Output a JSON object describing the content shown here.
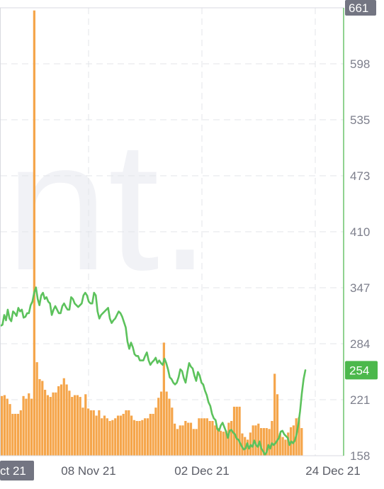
{
  "chart_data": {
    "type": "bar+line",
    "title": "",
    "xlabel": "",
    "ylabel": "",
    "watermark": "nt.",
    "y_axis": {
      "min": 158,
      "max": 661,
      "tick_labels": [
        "661",
        "598",
        "535",
        "473",
        "410",
        "347",
        "284",
        "221",
        "158"
      ],
      "top_badge": "661",
      "grid": true
    },
    "x_axis": {
      "tick_labels": [
        "ct 21",
        "08 Nov 21",
        "02 Dec 21",
        "24 Dec 21"
      ],
      "highlighted_tick": "ct 21",
      "grid": true
    },
    "current_value_badge": "254",
    "colors": {
      "bar": "#f5a54a",
      "line": "#5cc25c",
      "axis_line": "#6cc36c",
      "badge_gray": "#737582",
      "badge_green": "#4cb84c",
      "grid": "#e3e5ea"
    },
    "series": [
      {
        "type": "bar",
        "values": [
          225,
          226,
          222,
          216,
          205,
          205,
          205,
          209,
          225,
          222,
          228,
          222,
          658,
          263,
          244,
          242,
          232,
          226,
          224,
          229,
          229,
          236,
          238,
          245,
          238,
          231,
          224,
          226,
          226,
          224,
          212,
          227,
          211,
          209,
          209,
          203,
          209,
          200,
          203,
          200,
          197,
          198,
          200,
          203,
          203,
          205,
          209,
          209,
          203,
          198,
          197,
          197,
          198,
          200,
          200,
          205,
          205,
          212,
          223,
          230,
          285,
          230,
          222,
          212,
          194,
          188,
          192,
          192,
          197,
          195,
          195,
          188,
          188,
          200,
          200,
          200,
          200,
          197,
          197,
          192,
          189,
          186,
          185,
          186,
          195,
          197,
          213,
          213,
          213,
          183,
          179,
          176,
          184,
          192,
          192,
          194,
          189,
          189,
          189,
          188,
          197,
          250,
          227,
          183,
          179,
          176,
          184,
          190,
          192,
          200,
          201,
          189
        ]
      },
      {
        "type": "line",
        "values": [
          304,
          305,
          316,
          310,
          322,
          312,
          309,
          320,
          318,
          315,
          324,
          320,
          322,
          313,
          314,
          318,
          318,
          327,
          331,
          341,
          347,
          334,
          327,
          338,
          341,
          334,
          336,
          331,
          329,
          316,
          322,
          326,
          322,
          318,
          318,
          326,
          329,
          325,
          322,
          322,
          336,
          334,
          329,
          327,
          325,
          327,
          329,
          338,
          341,
          338,
          331,
          329,
          329,
          341,
          338,
          320,
          312,
          316,
          318,
          320,
          322,
          324,
          312,
          307,
          310,
          312,
          316,
          320,
          318,
          314,
          308,
          302,
          286,
          278,
          285,
          280,
          272,
          270,
          270,
          265,
          265,
          265,
          270,
          274,
          265,
          260,
          263,
          265,
          268,
          262,
          265,
          262,
          260,
          267,
          262,
          255,
          246,
          244,
          240,
          238,
          240,
          246,
          255,
          253,
          245,
          240,
          252,
          262,
          258,
          256,
          248,
          242,
          252,
          248,
          240,
          238,
          231,
          226,
          218,
          214,
          205,
          200,
          198,
          188,
          186,
          192,
          195,
          190,
          185,
          178,
          186,
          187,
          184,
          182,
          177,
          176,
          172,
          168,
          165,
          166,
          172,
          166,
          170,
          168,
          175,
          170,
          168,
          174,
          166,
          163,
          159,
          162,
          170,
          166,
          172,
          170,
          172,
          175,
          178,
          185,
          186,
          182,
          180,
          178,
          170,
          174,
          172,
          175,
          182,
          193,
          208,
          228,
          244,
          254
        ]
      }
    ]
  }
}
